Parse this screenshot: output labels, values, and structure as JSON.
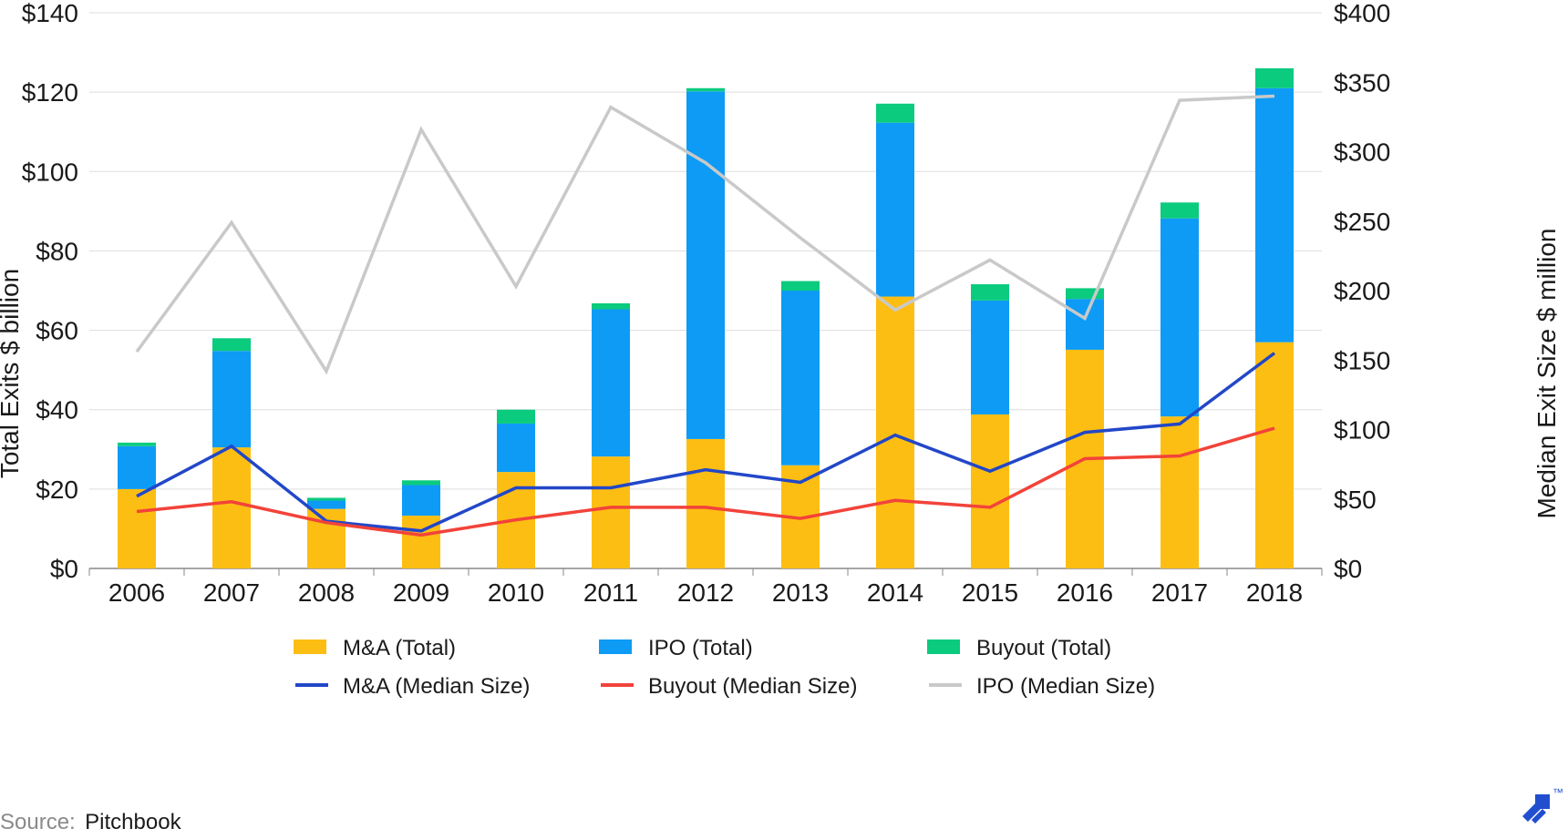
{
  "chart_data": {
    "type": "bar",
    "stacked": true,
    "categories": [
      "2006",
      "2007",
      "2008",
      "2009",
      "2010",
      "2011",
      "2012",
      "2013",
      "2014",
      "2015",
      "2016",
      "2017",
      "2018"
    ],
    "series": [
      {
        "name": "M&A (Total)",
        "type": "bar",
        "axis": "left",
        "color": "#FDBE13",
        "values": [
          20,
          30.5,
          15,
          13.3,
          24.3,
          28.2,
          32.6,
          26,
          68.5,
          38.8,
          55.1,
          38.3,
          57
        ]
      },
      {
        "name": "IPO (Total)",
        "type": "bar",
        "axis": "left",
        "color": "#0D9BF6",
        "values": [
          10.8,
          24.3,
          2.1,
          7.7,
          12.2,
          37.1,
          87.6,
          44,
          43.8,
          28.7,
          12.8,
          49.9,
          64
        ]
      },
      {
        "name": "Buyout (Total)",
        "type": "bar",
        "axis": "left",
        "color": "#0BCB7E",
        "values": [
          0.9,
          3.2,
          0.7,
          1.2,
          3.5,
          1.5,
          0.8,
          2.4,
          4.8,
          4.1,
          2.7,
          4,
          5
        ]
      },
      {
        "name": "M&A (Median Size)",
        "type": "line",
        "axis": "right",
        "color": "#2247C8",
        "values": [
          52,
          88,
          34,
          27,
          58,
          58,
          71,
          62,
          96,
          70,
          98,
          104,
          155
        ]
      },
      {
        "name": "Buyout (Median Size)",
        "type": "line",
        "axis": "right",
        "color": "#F2433A",
        "values": [
          41,
          48,
          33,
          24,
          35,
          44,
          44,
          36,
          49,
          44,
          79,
          81,
          101
        ]
      },
      {
        "name": "IPO (Median Size)",
        "type": "line",
        "axis": "right",
        "color": "#C9C9C9",
        "values": [
          156,
          249,
          142,
          316,
          203,
          332,
          292,
          238,
          186,
          222,
          180,
          337,
          340
        ]
      }
    ],
    "ylabel": "Total Exits $ billion",
    "y2label": "Median Exit Size $ million",
    "ylim": [
      0,
      140
    ],
    "y2lim": [
      0,
      400
    ],
    "yticks": [
      "$0",
      "$20",
      "$40",
      "$60",
      "$80",
      "$100",
      "$120",
      "$140"
    ],
    "y2ticks": [
      "$0",
      "$50",
      "$100",
      "$150",
      "$200",
      "$250",
      "$300",
      "$350",
      "$400"
    ],
    "grid": true,
    "legend": "bottom"
  },
  "source": {
    "prefix": "Source:",
    "name": "Pitchbook"
  },
  "logo": {
    "icon": "toptal-logo-icon",
    "mark": "™",
    "color": "#204ECF"
  }
}
